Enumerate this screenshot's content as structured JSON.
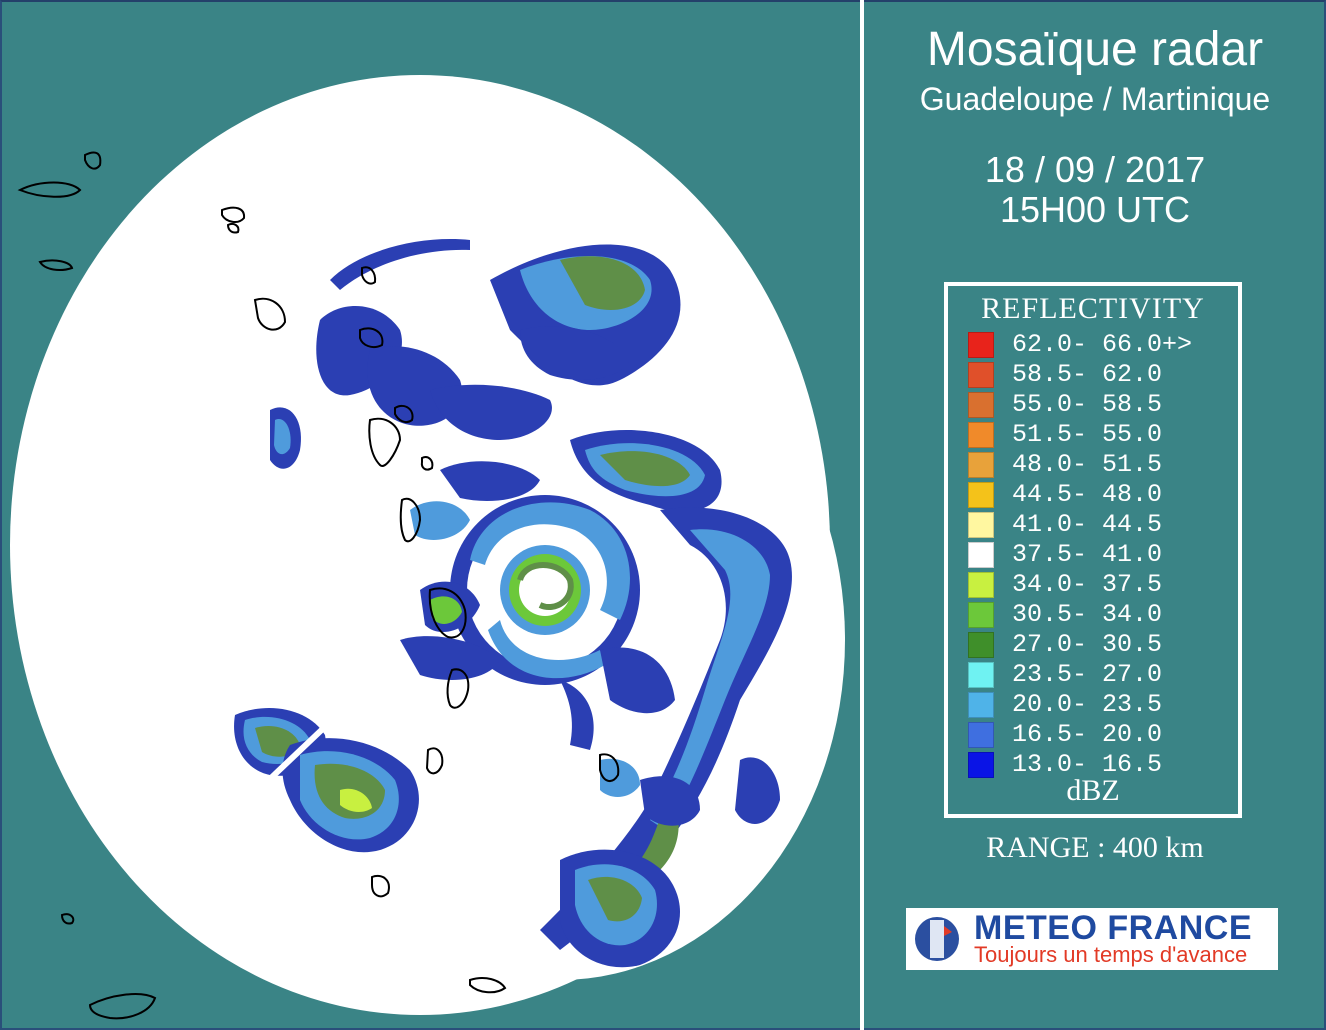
{
  "colors": {
    "background": "#3a8486",
    "radar_coverage": "#ffffff",
    "coastline": "#000000",
    "text": "#ffffff"
  },
  "header": {
    "title": "Mosaïque radar",
    "subtitle": "Guadeloupe / Martinique",
    "date": "18 / 09 / 2017",
    "time": "15H00 UTC"
  },
  "legend": {
    "title": "REFLECTIVITY",
    "unit": "dBZ",
    "items": [
      {
        "range": "62.0- 66.0+>",
        "color": "#e8231b"
      },
      {
        "range": "58.5- 62.0",
        "color": "#e0502a"
      },
      {
        "range": "55.0- 58.5",
        "color": "#d9702f"
      },
      {
        "range": "51.5- 55.0",
        "color": "#f08a2a"
      },
      {
        "range": "48.0- 51.5",
        "color": "#e8a23a"
      },
      {
        "range": "44.5- 48.0",
        "color": "#f4c21a"
      },
      {
        "range": "41.0- 44.5",
        "color": "#fff7a0"
      },
      {
        "range": "37.5- 41.0",
        "color": "#ffffff"
      },
      {
        "range": "34.0- 37.5",
        "color": "#c8f040"
      },
      {
        "range": "30.5- 34.0",
        "color": "#6cc83a"
      },
      {
        "range": "27.0- 30.5",
        "color": "#3f8f2a"
      },
      {
        "range": "23.5- 27.0",
        "color": "#6ff2f2"
      },
      {
        "range": "20.0- 23.5",
        "color": "#4fb3e8"
      },
      {
        "range": "16.5- 20.0",
        "color": "#3f6fe0"
      },
      {
        "range": "13.0- 16.5",
        "color": "#0a14e6"
      }
    ]
  },
  "range": "RANGE : 400 km",
  "logo": {
    "name": "METEO FRANCE",
    "slogan": "Toujours un temps d'avance"
  }
}
